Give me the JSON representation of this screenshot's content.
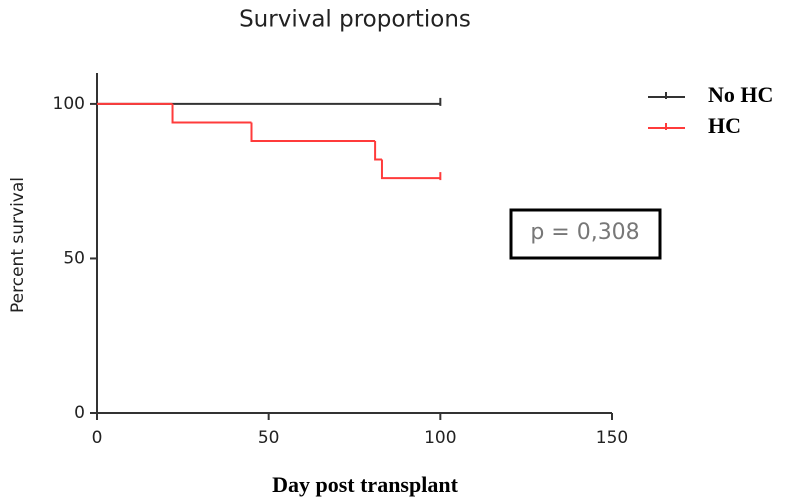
{
  "chart_data": {
    "type": "step",
    "title": "Survival proportions",
    "x_label": "Day post transplant",
    "y_label": "Percent survival",
    "annotation": "p = 0,308",
    "series": [
      {
        "name": "No HC",
        "color": "#333333",
        "x": [
          0,
          100
        ],
        "values": [
          100,
          100
        ]
      },
      {
        "name": "HC",
        "color": "#ff3b3b",
        "x": [
          0,
          22,
          45,
          81,
          83,
          100
        ],
        "values": [
          100,
          94,
          88,
          82,
          76,
          76
        ]
      }
    ],
    "xlim": [
      0,
      150
    ],
    "xticks": [
      0,
      50,
      100,
      150
    ],
    "ylim": [
      0,
      110
    ],
    "yticks": [
      0,
      50,
      100
    ],
    "legend": "right"
  }
}
